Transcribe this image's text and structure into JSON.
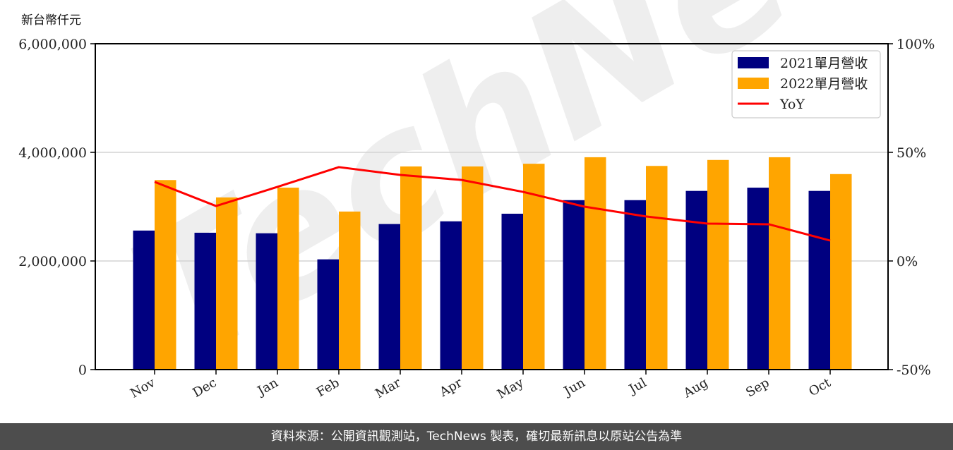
{
  "chart_data": {
    "type": "bar",
    "title": "",
    "ylabel": "新台幣仟元",
    "xlabel": "",
    "categories": [
      "Nov",
      "Dec",
      "Jan",
      "Feb",
      "Mar",
      "Apr",
      "May",
      "Jun",
      "Jul",
      "Aug",
      "Sep",
      "Oct"
    ],
    "series": [
      {
        "name": "2021單月營收",
        "type": "bar",
        "color": "#000080",
        "values": [
          2560000,
          2520000,
          2510000,
          2030000,
          2680000,
          2730000,
          2870000,
          3120000,
          3120000,
          3290000,
          3350000,
          3290000
        ]
      },
      {
        "name": "2022單月營收",
        "type": "bar",
        "color": "#FFA500",
        "values": [
          3490000,
          3170000,
          3350000,
          2910000,
          3740000,
          3740000,
          3790000,
          3910000,
          3750000,
          3860000,
          3910000,
          3600000
        ]
      },
      {
        "name": "YoY",
        "type": "line",
        "axis": "right",
        "color": "#FF0000",
        "values": [
          36.4,
          25.3,
          34.1,
          43.2,
          39.6,
          37.3,
          31.8,
          25.0,
          20.5,
          17.2,
          16.9,
          9.4
        ]
      }
    ],
    "ylim": [
      0,
      6000000
    ],
    "yticks": [
      "0",
      "2,000,000",
      "4,000,000",
      "6,000,000"
    ],
    "y2lim": [
      -50,
      100
    ],
    "y2ticks": [
      "-50%",
      "0%",
      "50%",
      "100%"
    ],
    "grid": "horizontal",
    "legend_position": "upper right"
  },
  "unit_label": "新台幣仟元",
  "watermark": "TechNews",
  "footer": "資料來源：公開資訊觀測站，TechNews 製表，確切最新訊息以原站公告為準"
}
